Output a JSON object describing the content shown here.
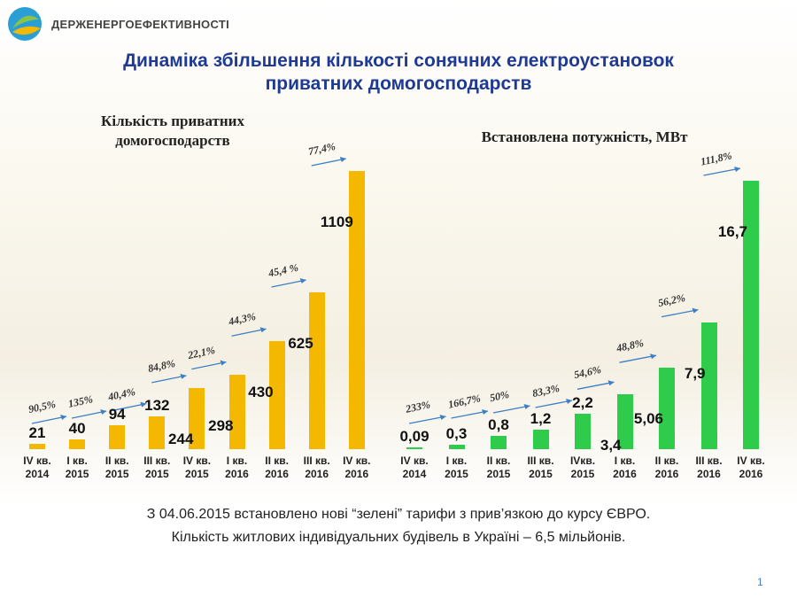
{
  "header": {
    "org": "ДЕРЖЕНЕРГОЕФЕКТИВНОСТІ"
  },
  "title": "Динаміка збільшення кількості сонячних електроустановок приватних домогосподарств",
  "chart_data": [
    {
      "type": "bar",
      "title": "Кількість приватних домогосподарств",
      "color": "#f5b800",
      "categories": [
        "IV кв. 2014",
        "I кв. 2015",
        "II кв. 2015",
        "III кв. 2015",
        "IV кв. 2015",
        "I кв. 2016",
        "II кв. 2016",
        "III кв. 2016",
        "IV кв. 2016"
      ],
      "values": [
        21,
        40,
        94,
        132,
        244,
        298,
        430,
        625,
        1109
      ],
      "annotations": [
        "90,5%",
        "135%",
        "40,4%",
        "84,8%",
        "22,1%",
        "44,3%",
        "45,4 %",
        "77,4%"
      ]
    },
    {
      "type": "bar",
      "title": "Встановлена потужність, МВт",
      "color": "#2ecc4a",
      "categories": [
        "IV кв. 2014",
        "I кв. 2015",
        "II кв. 2015",
        "III кв. 2015",
        "IVкв. 2015",
        "I кв. 2016",
        "II кв. 2016",
        "III кв. 2016",
        "IV кв. 2016"
      ],
      "values": [
        0.09,
        0.3,
        0.8,
        1.2,
        2.2,
        3.4,
        5.06,
        7.9,
        16.7
      ],
      "value_labels": [
        "0,09",
        "0,3",
        "0,8",
        "1,2",
        "2,2",
        "3,4",
        "5,06",
        "7,9",
        "16,7"
      ],
      "annotations": [
        "233%",
        "166,7%",
        "50%",
        "83,3%",
        "54,6%",
        "48,8%",
        "56,2%",
        "111,8%"
      ]
    }
  ],
  "footer": [
    "З 04.06.2015 встановлено нові “зелені” тарифи з прив’язкою до курсу ЄВРО.",
    "Кількість житлових індивідуальних будівель в Україні – 6,5 мільйонів."
  ],
  "page_number": 1
}
